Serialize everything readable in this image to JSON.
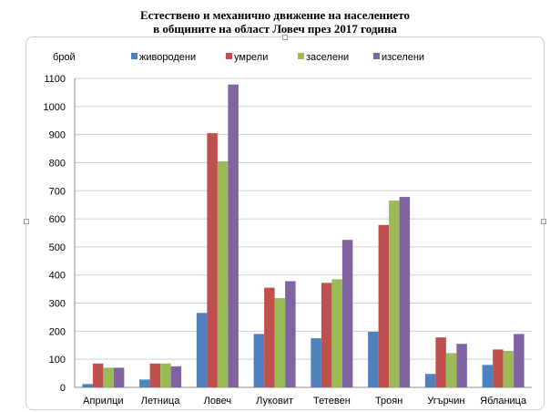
{
  "chart_data": {
    "type": "bar",
    "title": "Естествено и механично движение на населението",
    "subtitle": "в общините на област Ловеч през 2017 година",
    "ylabel": "брой",
    "xlabel": "",
    "ylim": [
      0,
      1100
    ],
    "ytick_step": 100,
    "grid": true,
    "legend_position": "top",
    "categories": [
      "Априлци",
      "Летница",
      "Ловеч",
      "Луковит",
      "Тетевен",
      "Троян",
      "Угърчин",
      "Ябланица"
    ],
    "series": [
      {
        "name": "живородени",
        "color": "#4f81bd",
        "values": [
          12,
          28,
          265,
          190,
          175,
          198,
          48,
          80
        ]
      },
      {
        "name": "умрели",
        "color": "#c0504d",
        "values": [
          85,
          85,
          905,
          355,
          372,
          578,
          178,
          135
        ]
      },
      {
        "name": "заселени",
        "color": "#9bbb59",
        "values": [
          70,
          85,
          805,
          318,
          385,
          665,
          122,
          130
        ]
      },
      {
        "name": "изселени",
        "color": "#8064a2",
        "values": [
          70,
          75,
          1078,
          378,
          525,
          678,
          155,
          190
        ]
      }
    ]
  }
}
